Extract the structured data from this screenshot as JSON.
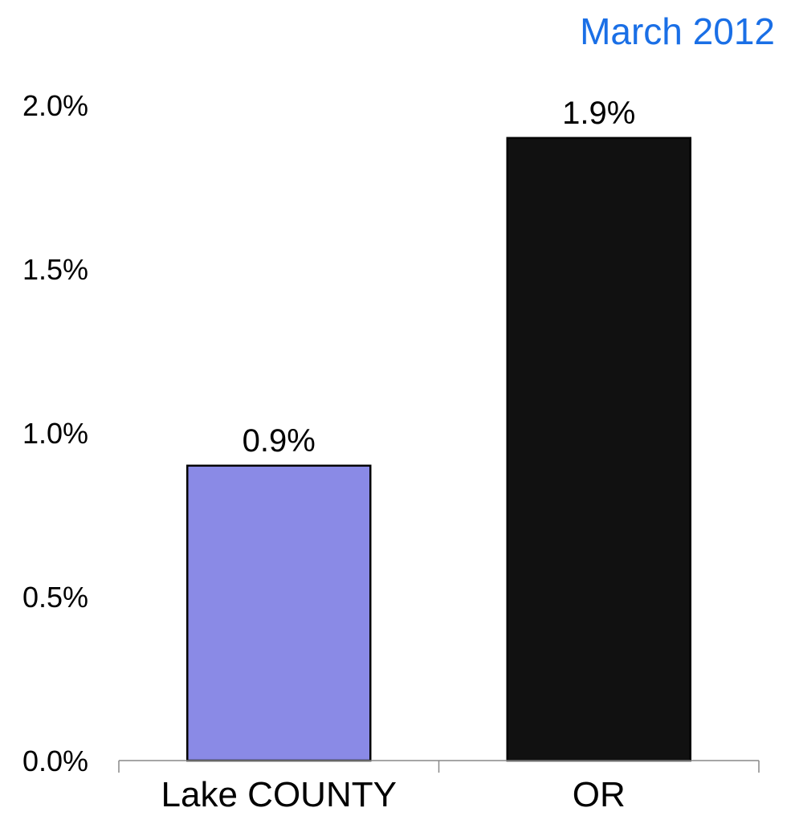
{
  "chart_data": {
    "type": "bar",
    "title": "March 2012",
    "xlabel": "",
    "ylabel": "",
    "categories": [
      "Lake COUNTY",
      "OR"
    ],
    "values": [
      0.9,
      1.9
    ],
    "value_labels": [
      "0.9%",
      "1.9%"
    ],
    "ylim": [
      0,
      2.0
    ],
    "yticks": [
      0.0,
      0.5,
      1.0,
      1.5,
      2.0
    ],
    "ytick_labels": [
      "0.0%",
      "0.5%",
      "1.0%",
      "1.5%",
      "2.0%"
    ],
    "bar_colors": [
      "#8a8ae6",
      "#111111"
    ],
    "title_color": "#1a6fe6",
    "grid": false,
    "legend": "none"
  }
}
